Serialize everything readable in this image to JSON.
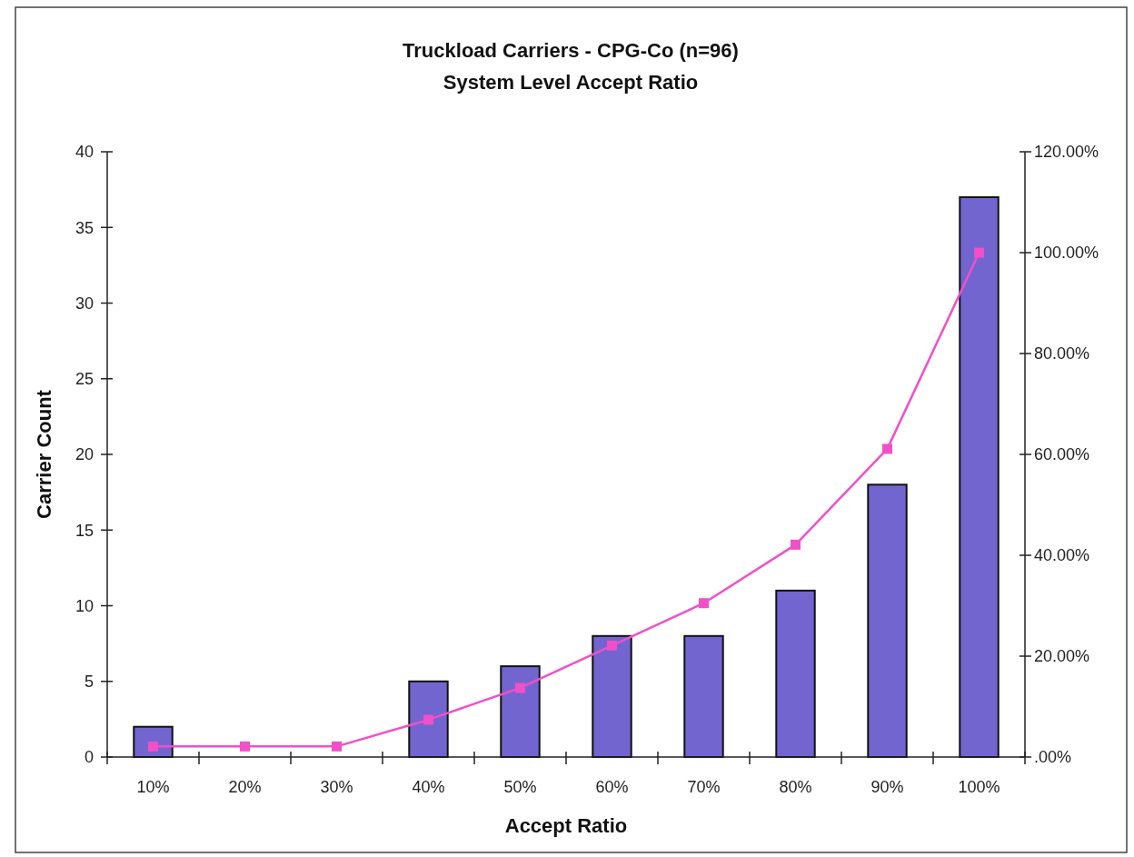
{
  "chart_data": {
    "type": "bar",
    "title": "Truckload Carriers - CPG-Co (n=96)",
    "subtitle": "System Level Accept Ratio",
    "xlabel": "Accept Ratio",
    "ylabel": "Carrier Count",
    "categories": [
      "10%",
      "20%",
      "30%",
      "40%",
      "50%",
      "60%",
      "70%",
      "80%",
      "90%",
      "100%"
    ],
    "series": [
      {
        "color": "#7265d0",
        "values": [
          2,
          0,
          0,
          5,
          6,
          8,
          8,
          11,
          18,
          37
        ]
      },
      {
        "type": "line",
        "axis": "y2",
        "color": "#f050c8",
        "values": [
          2.1,
          2.1,
          2.1,
          7.4,
          13.7,
          22.1,
          30.5,
          42.1,
          61.1,
          100
        ]
      }
    ],
    "ylim": [
      0,
      40
    ],
    "yticks": [
      0,
      5,
      10,
      15,
      20,
      25,
      30,
      35,
      40
    ],
    "y2lim": [
      0,
      120
    ],
    "y2ticks": [
      {
        "value": 0,
        "label": ".00%"
      },
      {
        "value": 20,
        "label": "20.00%"
      },
      {
        "value": 40,
        "label": "40.00%"
      },
      {
        "value": 60,
        "label": "60.00%"
      },
      {
        "value": 80,
        "label": "80.00%"
      },
      {
        "value": 100,
        "label": "100.00%"
      },
      {
        "value": 120,
        "label": "120.00%"
      }
    ],
    "marker": "square",
    "line_style": "solid"
  }
}
